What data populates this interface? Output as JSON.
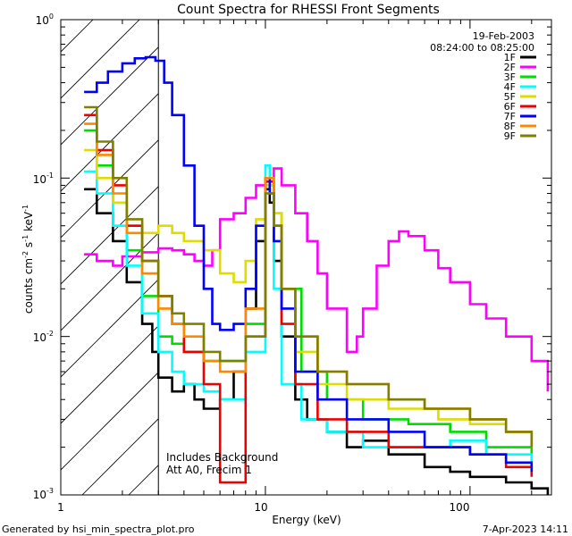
{
  "chart_data": {
    "type": "line",
    "title": "Count Spectra for RHESSI Front Segments",
    "xlabel": "Energy (keV)",
    "ylabel_parts": {
      "a": "counts cm",
      "b": "-2",
      "c": " s",
      "d": "-1",
      "e": " keV",
      "f": "-1"
    },
    "xscale": "log",
    "yscale": "log",
    "xlim": [
      1.0,
      250.0
    ],
    "ylim": [
      0.001,
      1.0
    ],
    "x_ticks": [
      {
        "v": 10,
        "label": "10"
      },
      {
        "v": 100,
        "label": "100"
      }
    ],
    "x_tick_left_label": "1",
    "y_ticks": [
      {
        "v": 1,
        "base": "10",
        "exp": "0"
      },
      {
        "v": 0.1,
        "base": "10",
        "exp": "-1"
      },
      {
        "v": 0.01,
        "base": "10",
        "exp": "-2"
      },
      {
        "v": 0.001,
        "base": "10",
        "exp": "-3"
      }
    ],
    "hatched_region_x": [
      1.0,
      3.0
    ],
    "header": {
      "date": "19-Feb-2003",
      "time_range": "08:24:00 to 08:25:00"
    },
    "annotation": [
      "Includes Background",
      "Att A0, Frecim 1"
    ],
    "footer_left": "Generated by hsi_min_spectra_plot.pro",
    "footer_right": "7-Apr-2023 14:11",
    "series": [
      {
        "name": "1F",
        "color": "#000000",
        "x": [
          1.3,
          1.5,
          1.8,
          2.1,
          2.5,
          2.8,
          3.0,
          3.5,
          4.0,
          4.5,
          5.0,
          6.0,
          7.0,
          8.0,
          9.0,
          10.0,
          10.5,
          11.0,
          12.0,
          14.0,
          16.0,
          20.0,
          25.0,
          30.0,
          40.0,
          50.0,
          60.0,
          80.0,
          100.0,
          150.0,
          200.0,
          240.0
        ],
        "y": [
          0.085,
          0.06,
          0.04,
          0.022,
          0.012,
          0.008,
          0.0055,
          0.0045,
          0.005,
          0.004,
          0.0035,
          0.004,
          0.006,
          0.015,
          0.04,
          0.085,
          0.07,
          0.03,
          0.01,
          0.004,
          0.003,
          0.0025,
          0.002,
          0.0022,
          0.0018,
          0.0018,
          0.0015,
          0.0014,
          0.0013,
          0.0012,
          0.0011,
          0.001
        ]
      },
      {
        "name": "2F",
        "color": "#ff00ff",
        "x": [
          1.3,
          1.5,
          1.8,
          2.0,
          2.5,
          3.0,
          3.5,
          4.0,
          4.5,
          5.0,
          5.5,
          6.0,
          7.0,
          8.0,
          9.0,
          10.0,
          11.0,
          12.0,
          14.0,
          16.0,
          18.0,
          20.0,
          25.0,
          28.0,
          30.0,
          35.0,
          40.0,
          45.0,
          50.0,
          60.0,
          70.0,
          80.0,
          100.0,
          120.0,
          150.0,
          200.0,
          240.0
        ],
        "y": [
          0.033,
          0.03,
          0.028,
          0.032,
          0.034,
          0.036,
          0.035,
          0.033,
          0.03,
          0.028,
          0.035,
          0.055,
          0.06,
          0.075,
          0.09,
          0.1,
          0.115,
          0.09,
          0.06,
          0.04,
          0.025,
          0.015,
          0.008,
          0.01,
          0.015,
          0.028,
          0.04,
          0.046,
          0.043,
          0.035,
          0.027,
          0.022,
          0.016,
          0.013,
          0.01,
          0.007,
          0.0045
        ]
      },
      {
        "name": "3F",
        "color": "#00dd00",
        "x": [
          1.3,
          1.5,
          1.8,
          2.1,
          2.5,
          3.0,
          3.5,
          4.0,
          5.0,
          6.0,
          8.0,
          10.0,
          11.0,
          12.0,
          15.0,
          20.0,
          30.0,
          50.0,
          80.0,
          120.0,
          200.0
        ],
        "y": [
          0.2,
          0.12,
          0.07,
          0.035,
          0.018,
          0.01,
          0.009,
          0.008,
          0.007,
          0.007,
          0.012,
          0.1,
          0.06,
          0.02,
          0.006,
          0.004,
          0.003,
          0.0028,
          0.0025,
          0.002,
          0.0018
        ]
      },
      {
        "name": "4F",
        "color": "#00ffff",
        "x": [
          1.3,
          1.5,
          1.8,
          2.1,
          2.5,
          3.0,
          3.5,
          4.0,
          5.0,
          6.0,
          8.0,
          10.0,
          10.5,
          11.0,
          12.0,
          15.0,
          20.0,
          30.0,
          50.0,
          80.0,
          120.0,
          200.0
        ],
        "y": [
          0.11,
          0.08,
          0.05,
          0.028,
          0.014,
          0.008,
          0.006,
          0.005,
          0.0045,
          0.004,
          0.008,
          0.12,
          0.09,
          0.02,
          0.005,
          0.003,
          0.0025,
          0.002,
          0.002,
          0.0022,
          0.0018,
          0.0016
        ]
      },
      {
        "name": "5F",
        "color": "#dddd00",
        "x": [
          1.3,
          1.5,
          1.8,
          2.1,
          2.5,
          3.0,
          3.5,
          4.0,
          5.0,
          6.0,
          7.0,
          8.0,
          9.0,
          10.0,
          11.0,
          12.0,
          14.0,
          18.0,
          25.0,
          40.0,
          70.0,
          100.0,
          150.0,
          200.0
        ],
        "y": [
          0.15,
          0.1,
          0.07,
          0.05,
          0.045,
          0.05,
          0.045,
          0.04,
          0.035,
          0.025,
          0.022,
          0.03,
          0.055,
          0.09,
          0.06,
          0.02,
          0.008,
          0.005,
          0.004,
          0.0035,
          0.003,
          0.0028,
          0.0025,
          0.002
        ]
      },
      {
        "name": "6F",
        "color": "#ee0000",
        "x": [
          1.3,
          1.5,
          1.8,
          2.1,
          2.5,
          3.0,
          3.5,
          4.0,
          5.0,
          6.0,
          8.0,
          10.0,
          11.0,
          12.0,
          14.0,
          18.0,
          25.0,
          40.0,
          60.0,
          100.0,
          150.0,
          200.0
        ],
        "y": [
          0.25,
          0.15,
          0.09,
          0.05,
          0.03,
          0.018,
          0.012,
          0.008,
          0.005,
          0.0012,
          0.01,
          0.095,
          0.05,
          0.012,
          0.005,
          0.003,
          0.0025,
          0.002,
          0.002,
          0.0018,
          0.0015,
          0.0013
        ]
      },
      {
        "name": "7F",
        "color": "#0000ff",
        "x": [
          1.3,
          1.5,
          1.7,
          2.0,
          2.3,
          2.6,
          2.9,
          3.2,
          3.5,
          4.0,
          4.5,
          5.0,
          5.5,
          6.0,
          7.0,
          8.0,
          9.0,
          10.0,
          10.5,
          11.0,
          12.0,
          14.0,
          18.0,
          25.0,
          40.0,
          60.0,
          100.0,
          150.0,
          200.0
        ],
        "y": [
          0.35,
          0.4,
          0.47,
          0.53,
          0.57,
          0.58,
          0.55,
          0.4,
          0.25,
          0.12,
          0.05,
          0.02,
          0.012,
          0.011,
          0.012,
          0.02,
          0.05,
          0.1,
          0.08,
          0.04,
          0.015,
          0.006,
          0.004,
          0.003,
          0.0025,
          0.002,
          0.0018,
          0.0016,
          0.0014
        ]
      },
      {
        "name": "8F",
        "color": "#ff8800",
        "x": [
          1.3,
          1.5,
          1.8,
          2.1,
          2.5,
          3.0,
          3.5,
          4.0,
          5.0,
          6.0,
          8.0,
          10.0,
          11.0,
          12.0,
          14.0,
          18.0,
          25.0,
          40.0,
          60.0,
          100.0,
          150.0,
          200.0
        ],
        "y": [
          0.22,
          0.14,
          0.08,
          0.045,
          0.025,
          0.015,
          0.012,
          0.01,
          0.007,
          0.006,
          0.015,
          0.1,
          0.05,
          0.02,
          0.01,
          0.006,
          0.005,
          0.004,
          0.0035,
          0.003,
          0.0025,
          0.002
        ]
      },
      {
        "name": "9F",
        "color": "#808000",
        "x": [
          1.3,
          1.5,
          1.8,
          2.1,
          2.5,
          3.0,
          3.5,
          4.0,
          5.0,
          6.0,
          8.0,
          10.0,
          11.0,
          12.0,
          14.0,
          18.0,
          25.0,
          40.0,
          60.0,
          100.0,
          150.0,
          200.0
        ],
        "y": [
          0.28,
          0.17,
          0.1,
          0.055,
          0.03,
          0.018,
          0.014,
          0.012,
          0.008,
          0.007,
          0.01,
          0.08,
          0.05,
          0.02,
          0.01,
          0.006,
          0.005,
          0.004,
          0.0035,
          0.003,
          0.0025,
          0.002
        ]
      }
    ]
  }
}
